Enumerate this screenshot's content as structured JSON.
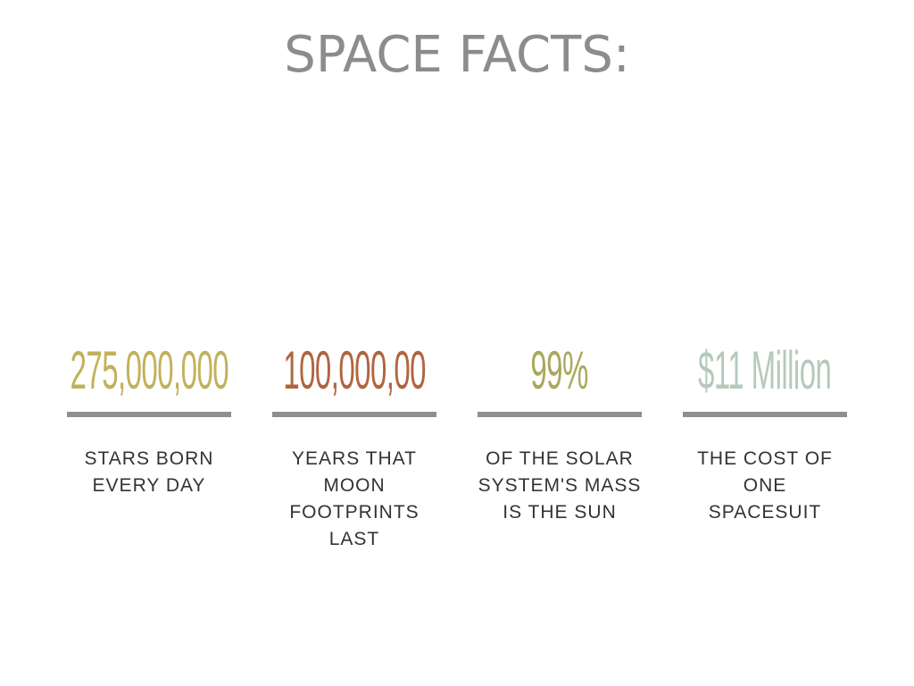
{
  "title": "SPACE FACTS:",
  "facts": [
    {
      "value": "275,000,000",
      "description_lines": [
        "STARS BORN",
        "EVERY DAY"
      ]
    },
    {
      "value": "100,000,00",
      "description_lines": [
        "YEARS THAT",
        "MOON",
        "FOOTPRINTS",
        "LAST"
      ]
    },
    {
      "value": "99%",
      "description_lines": [
        "OF THE SOLAR",
        "SYSTEM'S MASS",
        "IS THE SUN"
      ]
    },
    {
      "value": "$11 Million",
      "description_lines": [
        "THE COST OF",
        "ONE",
        "SPACESUIT"
      ]
    }
  ]
}
